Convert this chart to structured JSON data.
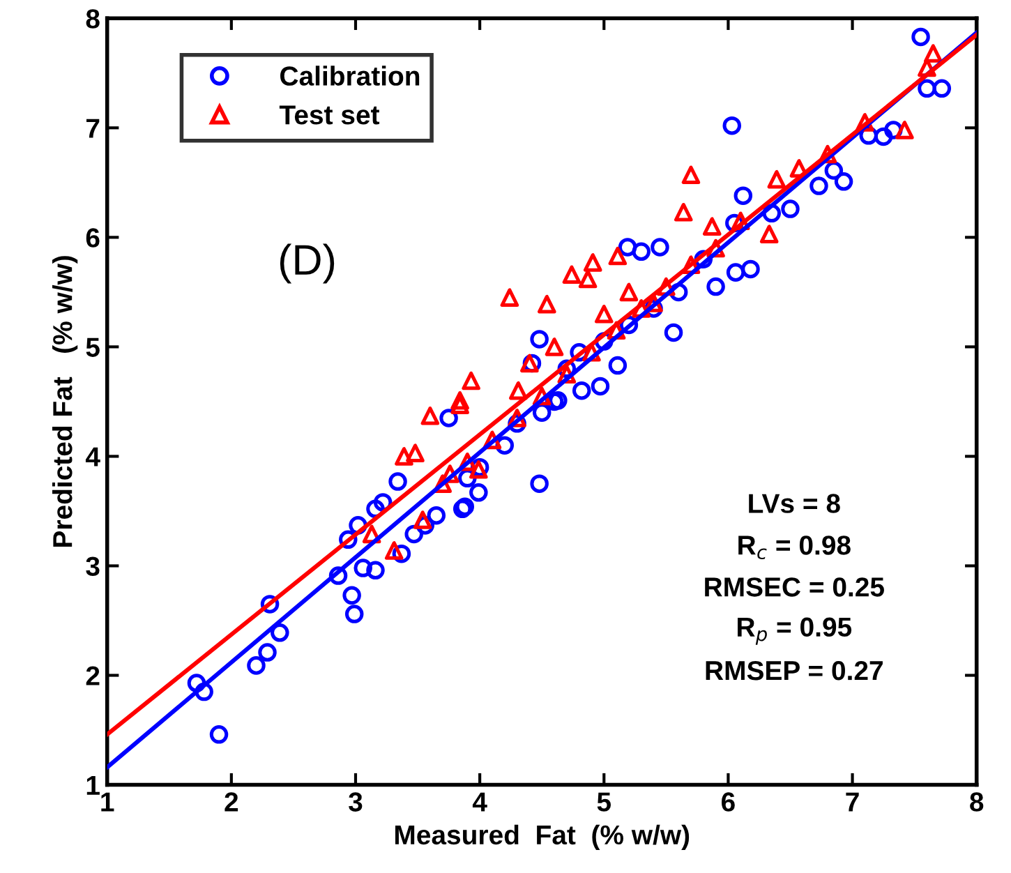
{
  "chart_data": {
    "type": "scatter",
    "xlabel": "Measured  Fat  (% w/w)",
    "ylabel": "Predicted Fat   (% w/w)",
    "xlim": [
      1,
      8
    ],
    "ylim": [
      1,
      8
    ],
    "xticks": [
      1,
      2,
      3,
      4,
      5,
      6,
      7,
      8
    ],
    "yticks": [
      1,
      2,
      3,
      4,
      5,
      6,
      7,
      8
    ],
    "grid": false,
    "legend": "top left",
    "annotations": [
      "(D)",
      "LVs = 8",
      "R$_{c}$ = 0.98",
      "RMSEC = 0.25",
      "R$_{p}$ = 0.95",
      "RMSEP = 0.27"
    ],
    "series": [
      {
        "name": "Calibration",
        "color": "#0000ff",
        "marker": "circle",
        "x": [
          1.72,
          1.78,
          1.9,
          2.2,
          2.29,
          2.31,
          2.39,
          2.86,
          2.97,
          2.99,
          2.94,
          3.02,
          3.06,
          3.16,
          3.16,
          3.22,
          3.34,
          3.37,
          3.47,
          3.56,
          3.65,
          3.86,
          3.99,
          3.75,
          6.03,
          4.48,
          4.48,
          4.42,
          5.11,
          4.97,
          5.56,
          5.19,
          5.3,
          5.45,
          5.9,
          6.06,
          6.18,
          6.12,
          6.05,
          6.35,
          6.5,
          6.73,
          6.93,
          6.85,
          7.13,
          7.25,
          7.33,
          3.88,
          4.63,
          4.82,
          7.55,
          7.6,
          7.72,
          4.2,
          4.3,
          4.5,
          4.6,
          4.7,
          4.8,
          5.0,
          5.2,
          5.4,
          5.6,
          5.8,
          4.0,
          3.9
        ],
        "values": [
          1.93,
          1.85,
          1.46,
          2.09,
          2.21,
          2.65,
          2.39,
          2.91,
          2.73,
          2.56,
          3.24,
          3.37,
          2.98,
          2.96,
          3.52,
          3.58,
          3.77,
          3.11,
          3.29,
          3.37,
          3.46,
          3.52,
          3.67,
          4.35,
          7.02,
          3.75,
          5.07,
          4.85,
          4.83,
          4.64,
          5.13,
          5.91,
          5.87,
          5.91,
          5.55,
          5.68,
          5.71,
          6.38,
          6.13,
          6.22,
          6.26,
          6.47,
          6.51,
          6.61,
          6.93,
          6.92,
          6.98,
          3.54,
          4.51,
          4.6,
          7.83,
          7.36,
          7.36,
          4.1,
          4.3,
          4.4,
          4.5,
          4.8,
          4.95,
          5.05,
          5.2,
          5.35,
          5.5,
          5.8,
          3.9,
          3.8
        ]
      },
      {
        "name": "Test set",
        "color": "#ff0000",
        "marker": "triangle",
        "x": [
          5.7,
          5.64,
          7.42,
          6.39,
          6.57,
          6.8,
          6.33,
          5.87,
          5.11,
          4.91,
          4.74,
          4.87,
          4.24,
          4.54,
          3.93,
          3.6,
          3.84,
          4.31,
          3.84,
          3.39,
          3.48,
          3.13,
          3.31,
          3.54,
          3.76,
          3.99,
          3.7,
          3.9,
          4.1,
          4.3,
          4.5,
          4.7,
          4.9,
          5.1,
          5.3,
          5.5,
          5.7,
          5.9,
          6.1,
          7.1,
          7.6,
          7.65,
          4.4,
          4.6,
          5.0,
          5.2,
          5.4
        ],
        "values": [
          6.57,
          6.23,
          6.98,
          6.53,
          6.63,
          6.76,
          6.03,
          6.1,
          5.83,
          5.77,
          5.66,
          5.62,
          5.45,
          5.39,
          4.69,
          4.37,
          4.47,
          4.6,
          4.51,
          4.0,
          4.03,
          3.29,
          3.14,
          3.42,
          3.84,
          3.88,
          3.75,
          3.95,
          4.15,
          4.35,
          4.55,
          4.75,
          4.95,
          5.15,
          5.35,
          5.55,
          5.75,
          5.9,
          6.15,
          7.05,
          7.55,
          7.68,
          4.85,
          5.0,
          5.3,
          5.5,
          5.4
        ]
      },
      {
        "type": "line",
        "color": "#0000ff",
        "marker": "none",
        "x": [
          1,
          8
        ],
        "values": [
          1.16,
          7.87
        ]
      },
      {
        "type": "line",
        "color": "#ff0000",
        "marker": "none",
        "x": [
          1,
          8
        ],
        "values": [
          1.46,
          7.85
        ]
      }
    ]
  }
}
